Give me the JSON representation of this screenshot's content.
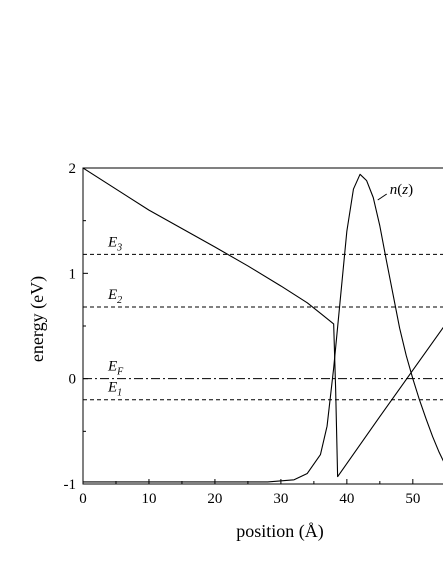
{
  "chart_data": {
    "type": "line",
    "title": "",
    "xlabel": "position (Å)",
    "ylabel": "energy (eV)",
    "xlim": [
      0,
      55
    ],
    "ylim": [
      -1,
      2
    ],
    "x_ticks": [
      0,
      10,
      20,
      30,
      40,
      50
    ],
    "y_ticks": [
      -1,
      0,
      1,
      2
    ],
    "grid": false,
    "legend": "none",
    "series": [
      {
        "name": "",
        "style": "solid",
        "x": [
          0,
          10,
          20,
          25,
          30,
          34,
          36,
          38,
          38.3,
          38.6,
          45,
          50,
          55
        ],
        "y": [
          2.0,
          1.6,
          1.25,
          1.07,
          0.88,
          0.72,
          0.62,
          0.52,
          -0.1,
          -0.93,
          -0.36,
          0.08,
          0.52
        ]
      },
      {
        "name": "n(z)",
        "style": "solid",
        "x": [
          0,
          10,
          20,
          28,
          32,
          34,
          36,
          37,
          38,
          39,
          40,
          41,
          42,
          43,
          44,
          45,
          46,
          47,
          48,
          49,
          50,
          51,
          52,
          53,
          54,
          55
        ],
        "y": [
          -0.98,
          -0.98,
          -0.98,
          -0.98,
          -0.96,
          -0.9,
          -0.72,
          -0.45,
          0.1,
          0.75,
          1.4,
          1.8,
          1.94,
          1.88,
          1.72,
          1.45,
          1.12,
          0.8,
          0.48,
          0.22,
          0.0,
          -0.2,
          -0.38,
          -0.55,
          -0.7,
          -0.83
        ]
      }
    ],
    "levels": [
      {
        "label_main": "E",
        "label_sub": "3",
        "y": 1.18,
        "style": "dashed"
      },
      {
        "label_main": "E",
        "label_sub": "2",
        "y": 0.68,
        "style": "dashed"
      },
      {
        "label_main": "E",
        "label_sub": "F",
        "y": 0.0,
        "style": "dashdot"
      },
      {
        "label_main": "E",
        "label_sub": "1",
        "y": -0.2,
        "style": "dashed"
      }
    ],
    "annotations": [
      {
        "text": "n(z)",
        "x": 46.5,
        "y": 1.81
      }
    ]
  }
}
